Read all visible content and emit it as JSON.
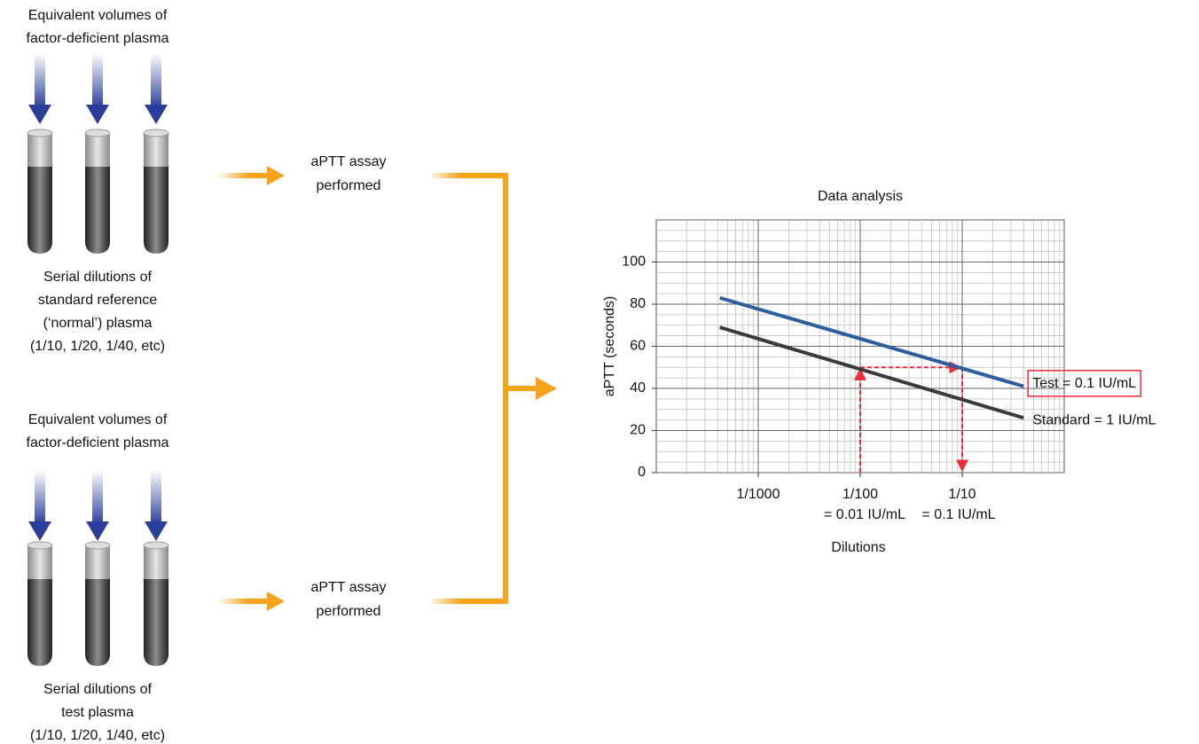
{
  "top_group": {
    "label": [
      "Equivalent volumes of",
      "factor-deficient plasma"
    ],
    "caption": [
      "Serial dilutions of",
      "standard reference",
      "(‘normal’) plasma",
      "(1/10, 1/20, 1/40, etc)"
    ]
  },
  "bottom_group": {
    "label": [
      "Equivalent volumes of",
      "factor-deficient plasma"
    ],
    "caption": [
      "Serial dilutions of",
      "test plasma",
      "(1/10, 1/20, 1/40, etc)"
    ]
  },
  "assay_steps": [
    [
      "aPTT assay",
      "performed"
    ],
    [
      "aPTT assay",
      "performed"
    ]
  ],
  "chart_data": {
    "type": "line",
    "title": "Data analysis",
    "x_label": "Dilutions",
    "y_label": "aPTT (seconds)",
    "xlog": true,
    "xlim": [
      0.0001,
      1
    ],
    "xticks": [
      {
        "value": 0.001,
        "label": "1/1000"
      },
      {
        "value": 0.01,
        "label": "1/100"
      },
      {
        "value": 0.1,
        "label": "1/10"
      }
    ],
    "ylim": [
      0,
      120
    ],
    "yticks": [
      0,
      20,
      40,
      60,
      80,
      100
    ],
    "grid": true,
    "series": [
      {
        "name": "Test = 0.1 IU/mL",
        "color": "#2e5d9f",
        "x": [
          0.00042,
          0.4
        ],
        "values": [
          83,
          41
        ]
      },
      {
        "name": "Standard = 1 IU/mL",
        "color": "#3a3a3a",
        "x": [
          0.00042,
          0.4
        ],
        "values": [
          69,
          26
        ]
      }
    ],
    "annotations": [
      "= 0.01 IU/mL",
      "= 0.1 IU/mL"
    ],
    "reference_arrows": {
      "color": "#ee2b36",
      "x": [
        0.01,
        0.1
      ],
      "y": 50
    }
  }
}
